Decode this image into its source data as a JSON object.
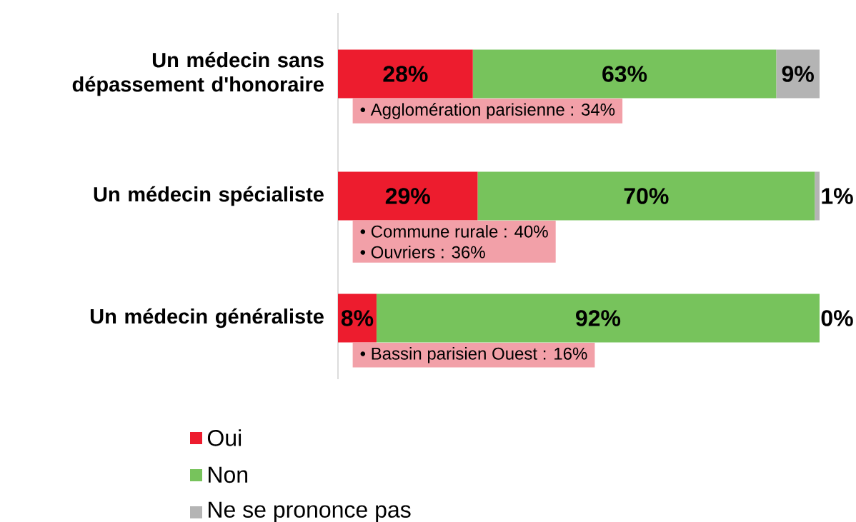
{
  "chart_data": {
    "type": "bar",
    "orientation": "horizontal",
    "stacked": true,
    "categories": [
      "Un médecin sans dépassement d'honoraire",
      "Un médecin spécialiste",
      "Un médecin généraliste"
    ],
    "series": [
      {
        "name": "Oui",
        "color": "#ed1c2e",
        "values": [
          28,
          29,
          8
        ],
        "value_labels": [
          "28%",
          "29%",
          "8%"
        ]
      },
      {
        "name": "Non",
        "color": "#77c35c",
        "values": [
          63,
          70,
          92
        ],
        "value_labels": [
          "63%",
          "70%",
          "92%"
        ]
      },
      {
        "name": "Ne se prononce pas",
        "color": "#b4b4b4",
        "values": [
          9,
          1,
          0
        ],
        "value_labels": [
          "9%",
          "1%",
          "0%"
        ]
      }
    ],
    "xlim": [
      0,
      100
    ],
    "tick_labels": "y",
    "legend": "bottom",
    "annotations": [
      "• Agglomération parisienne : 34%",
      "• Commune rurale : 40%\n• Ouvriers : 36%",
      "• Bassin parisien Ouest : 16%"
    ]
  }
}
